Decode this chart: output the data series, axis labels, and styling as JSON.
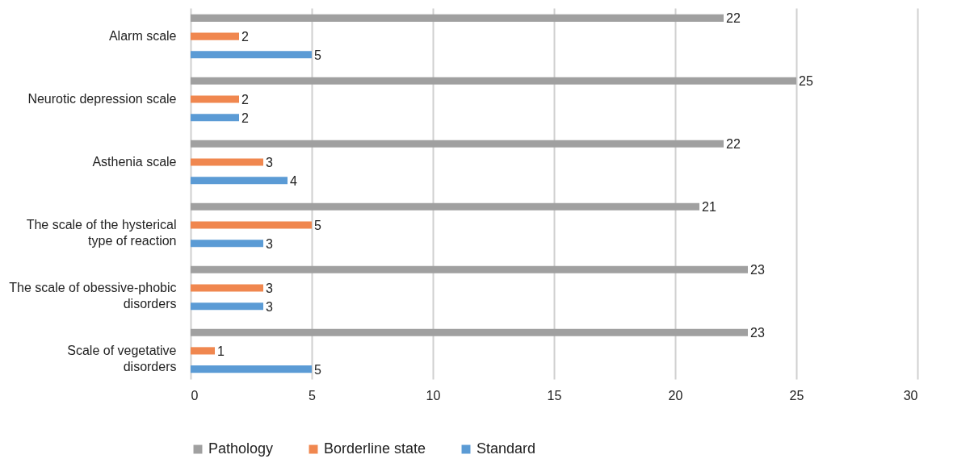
{
  "chart_data": {
    "type": "bar",
    "orientation": "horizontal",
    "categories": [
      "Alarm scale",
      "Neurotic depression scale",
      "Asthenia scale",
      "The scale of the hysterical type of reaction",
      "The scale of obessive-phobic disorders",
      "Scale of vegetative disorders"
    ],
    "series": [
      {
        "name": "Pathology",
        "color": "#a0a0a0",
        "values": [
          22,
          25,
          22,
          21,
          23,
          23
        ]
      },
      {
        "name": "Borderline state",
        "color": "#f0874f",
        "values": [
          2,
          2,
          3,
          5,
          3,
          1
        ]
      },
      {
        "name": "Standard",
        "color": "#5b9bd5",
        "values": [
          5,
          2,
          4,
          3,
          3,
          5
        ]
      }
    ],
    "xlim": [
      0,
      30
    ],
    "xticks": [
      0,
      5,
      10,
      15,
      20,
      25,
      30
    ],
    "grid": "x",
    "legend": "bottom",
    "data_labels": true
  }
}
